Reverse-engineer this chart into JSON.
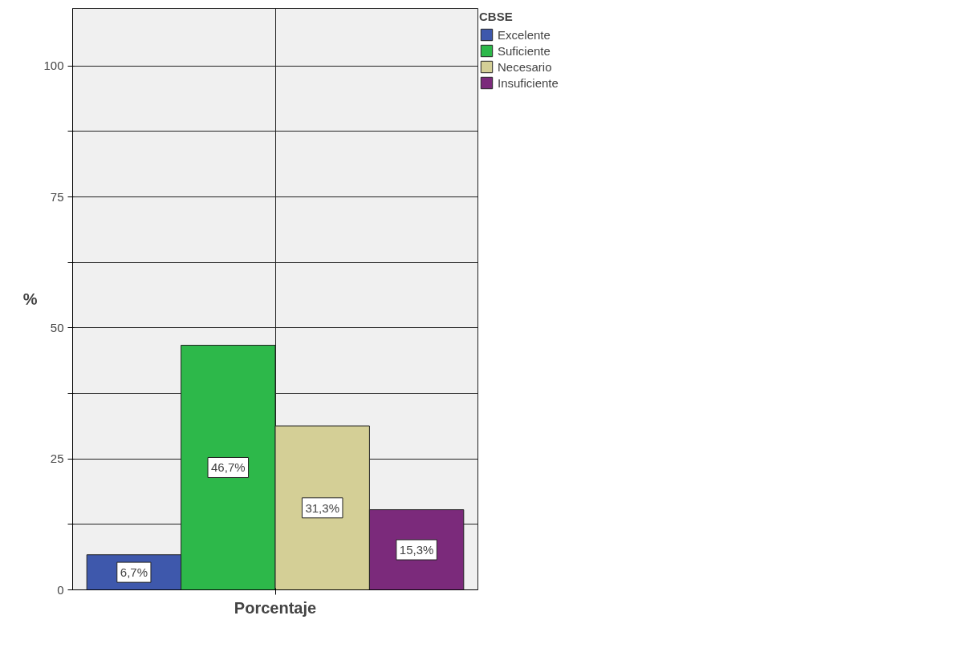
{
  "chart_data": {
    "type": "bar",
    "categories": [
      "Porcentaje"
    ],
    "ylabel": "%",
    "legend_title": "CBSE",
    "legend": "top right",
    "grid": true,
    "ylim": [
      0,
      111
    ],
    "yticks": [
      0,
      {
        "value": 12.5,
        "label": null
      },
      25,
      {
        "value": 37.5,
        "label": null
      },
      50,
      {
        "value": 62.5,
        "label": null
      },
      75,
      {
        "value": 87.5,
        "label": null
      },
      100
    ],
    "series": [
      {
        "name": "Excelente",
        "color": "#3e58ac",
        "values": [
          6.7
        ],
        "value_labels": [
          "6,7%"
        ]
      },
      {
        "name": "Suficiente",
        "color": "#2db84a",
        "values": [
          46.7
        ],
        "value_labels": [
          "46,7%"
        ]
      },
      {
        "name": "Necesario",
        "color": "#d4cf96",
        "values": [
          31.3
        ],
        "value_labels": [
          "31,3%"
        ]
      },
      {
        "name": "Insuficiente",
        "color": "#7b2a7b",
        "values": [
          15.3
        ],
        "value_labels": [
          "15,3%"
        ]
      }
    ]
  }
}
